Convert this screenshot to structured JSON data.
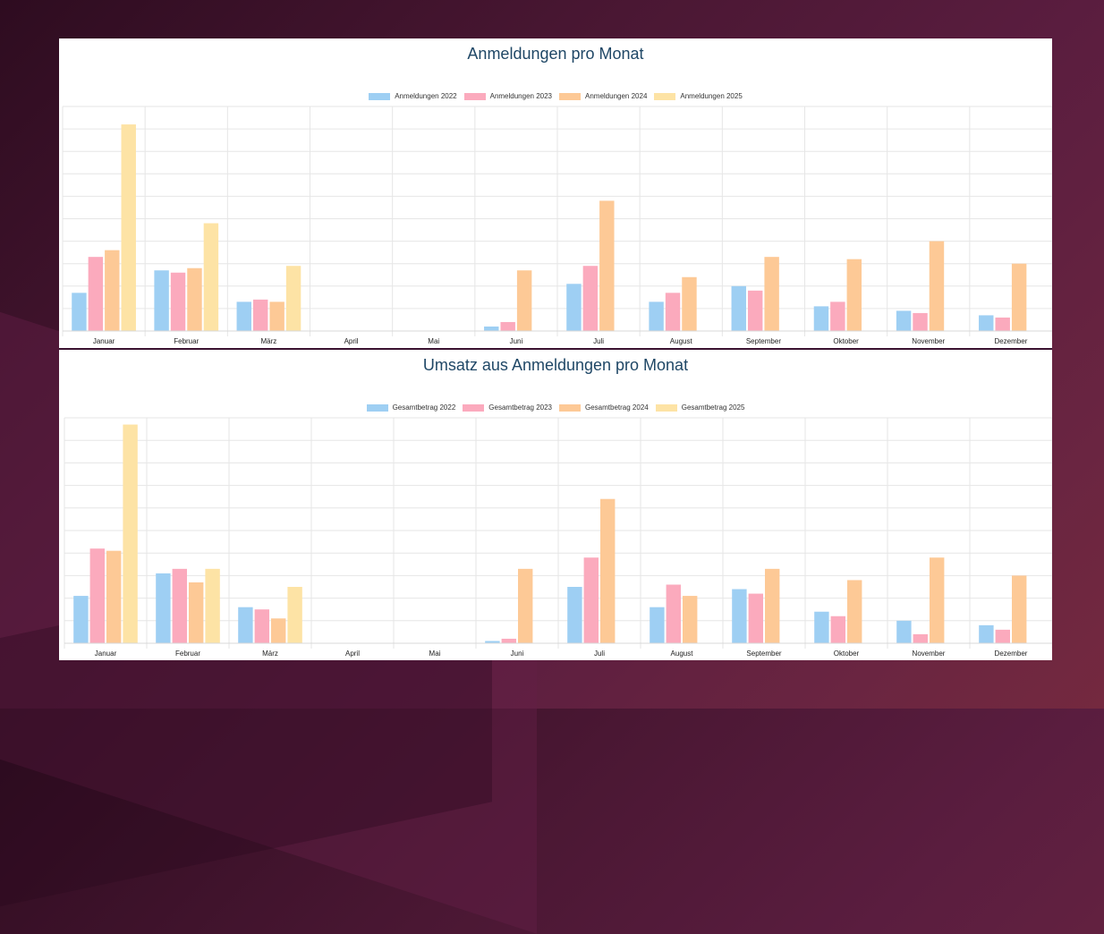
{
  "colors": {
    "2022": "#9ecff3",
    "2023": "#fbaabd",
    "2024": "#fdc996",
    "2025": "#fde3a5",
    "title": "#1f4766",
    "grid": "#e6e6e6"
  },
  "chart_data": [
    {
      "type": "bar",
      "title": "Anmeldungen pro Monat",
      "xlabel": "",
      "ylabel": "",
      "ylim": [
        0,
        10
      ],
      "y_tick_labels_visible": false,
      "grid": true,
      "legend": "top-center",
      "categories": [
        "Januar",
        "Februar",
        "März",
        "April",
        "Mai",
        "Juni",
        "Juli",
        "August",
        "September",
        "Oktober",
        "November",
        "Dezember"
      ],
      "series": [
        {
          "name": "Anmeldungen 2022",
          "key": "2022",
          "values": [
            1.7,
            2.7,
            1.3,
            0,
            0,
            0.2,
            2.1,
            1.3,
            2.0,
            1.1,
            0.9,
            0.7
          ]
        },
        {
          "name": "Anmeldungen 2023",
          "key": "2023",
          "values": [
            3.3,
            2.6,
            1.4,
            0,
            0,
            0.4,
            2.9,
            1.7,
            1.8,
            1.3,
            0.8,
            0.6
          ]
        },
        {
          "name": "Anmeldungen 2024",
          "key": "2024",
          "values": [
            3.6,
            2.8,
            1.3,
            0,
            0,
            2.7,
            5.8,
            2.4,
            3.3,
            3.2,
            4.0,
            3.0
          ]
        },
        {
          "name": "Anmeldungen 2025",
          "key": "2025",
          "values": [
            9.2,
            4.8,
            2.9,
            null,
            null,
            null,
            null,
            null,
            null,
            null,
            null,
            null
          ]
        }
      ]
    },
    {
      "type": "bar",
      "title": "Umsatz aus Anmeldungen pro Monat",
      "xlabel": "",
      "ylabel": "",
      "ylim": [
        0,
        10
      ],
      "y_tick_labels_visible": false,
      "grid": true,
      "legend": "top-center",
      "categories": [
        "Januar",
        "Februar",
        "März",
        "April",
        "Mai",
        "Juni",
        "Juli",
        "August",
        "September",
        "Oktober",
        "November",
        "Dezember"
      ],
      "series": [
        {
          "name": "Gesamtbetrag 2022",
          "key": "2022",
          "values": [
            2.1,
            3.1,
            1.6,
            0,
            0,
            0.1,
            2.5,
            1.6,
            2.4,
            1.4,
            1.0,
            0.8
          ]
        },
        {
          "name": "Gesamtbetrag 2023",
          "key": "2023",
          "values": [
            4.2,
            3.3,
            1.5,
            0,
            0,
            0.2,
            3.8,
            2.6,
            2.2,
            1.2,
            0.4,
            0.6
          ]
        },
        {
          "name": "Gesamtbetrag 2024",
          "key": "2024",
          "values": [
            4.1,
            2.7,
            1.1,
            0,
            0,
            3.3,
            6.4,
            2.1,
            3.3,
            2.8,
            3.8,
            3.0
          ]
        },
        {
          "name": "Gesamtbetrag 2025",
          "key": "2025",
          "values": [
            9.7,
            3.3,
            2.5,
            null,
            null,
            null,
            null,
            null,
            null,
            null,
            null,
            null
          ]
        }
      ]
    }
  ]
}
